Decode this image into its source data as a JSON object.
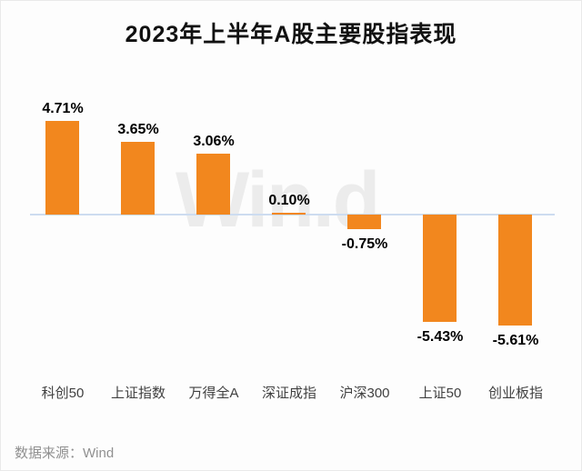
{
  "title": "2023年上半年A股主要股指表现",
  "source": "数据来源：Wind",
  "watermark": "Win.d",
  "colors": {
    "bar": "#F2871E",
    "axis_line": "#CDDCF0",
    "title_text": "#111111",
    "value_label": "#000000",
    "category_label": "#404040",
    "source_text": "#909090",
    "watermark_text": "#ECECEC"
  },
  "chart_data": {
    "type": "bar",
    "title": "2023年上半年A股主要股指表现",
    "categories": [
      "科创50",
      "上证指数",
      "万得全A",
      "深证成指",
      "沪深300",
      "上证50",
      "创业板指"
    ],
    "values": [
      4.71,
      3.65,
      3.06,
      0.1,
      -0.75,
      -5.43,
      -5.61
    ],
    "value_labels": [
      "4.71%",
      "3.65%",
      "3.06%",
      "0.10%",
      "-0.75%",
      "-5.43%",
      "-5.61%"
    ],
    "series_color": "#F2871E",
    "xlabel": "",
    "ylabel": "",
    "ylim": [
      -6.5,
      5.5
    ],
    "baseline": 0,
    "grid": false,
    "legend": null,
    "data_labels_visible": true,
    "source_note": "数据来源：Wind"
  }
}
